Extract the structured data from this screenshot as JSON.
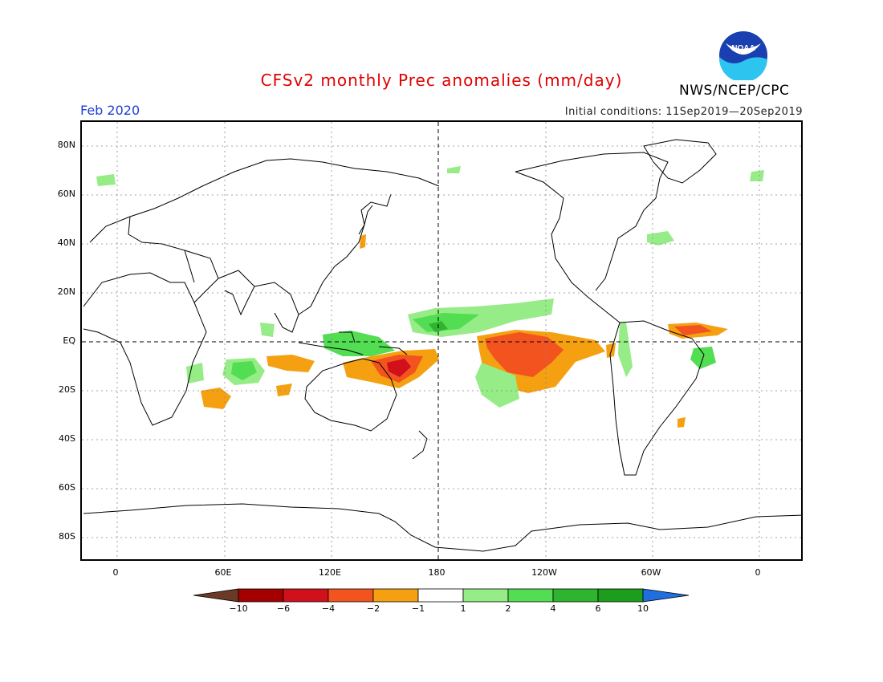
{
  "title": "CFSv2 monthly Prec anomalies (mm/day)",
  "agency": "NWS/NCEP/CPC",
  "month": "Feb 2020",
  "initial_conditions": "Initial conditions: 11Sep2019—20Sep2019",
  "logo_text": "NOAA",
  "map": {
    "lat_labels": [
      "80N",
      "60N",
      "40N",
      "20N",
      "EQ",
      "20S",
      "40S",
      "60S",
      "80S"
    ],
    "lon_labels": [
      "0",
      "60E",
      "120E",
      "180",
      "120W",
      "60W",
      "0"
    ]
  },
  "colorbar": {
    "labels": [
      "−10",
      "−6",
      "−4",
      "−2",
      "−1",
      "1",
      "2",
      "4",
      "6",
      "10"
    ],
    "colors": [
      "#6b3a26",
      "#a50000",
      "#d0101a",
      "#f2531f",
      "#f5a011",
      "#ffffff",
      "#96ec86",
      "#52dd52",
      "#2fb42f",
      "#1c9e1c",
      "#1f6fe0"
    ]
  },
  "anomaly_colors": {
    "dry_strong": "#d0101a",
    "dry_mod": "#f2531f",
    "dry_weak": "#f5a011",
    "wet_weak": "#96ec86",
    "wet_mod": "#52dd52",
    "wet_strong": "#2fb42f"
  }
}
